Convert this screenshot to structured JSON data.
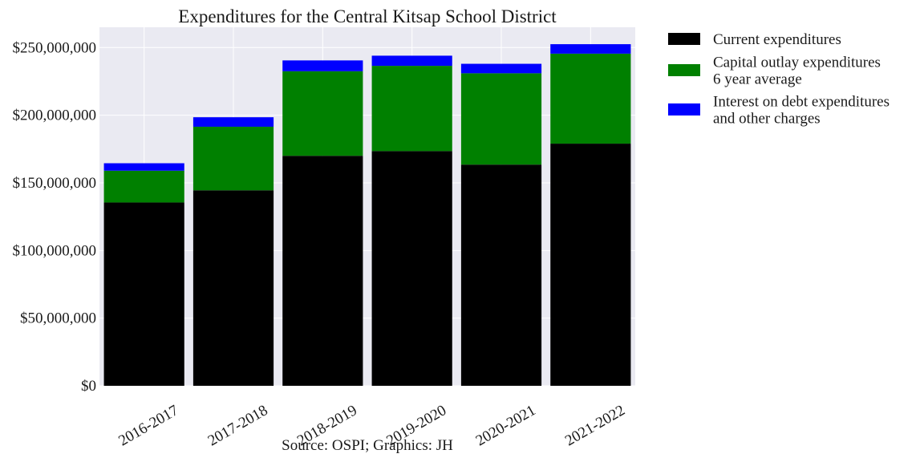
{
  "chart_data": {
    "type": "bar",
    "stacked": true,
    "title": "Expenditures for the Central Kitsap School District",
    "caption": "Source: OSPI; Graphics: JH",
    "categories": [
      "2016-2017",
      "2017-2018",
      "2018-2019",
      "2019-2020",
      "2020-2021",
      "2021-2022"
    ],
    "series": [
      {
        "name": "Current expenditures",
        "color": "#000000",
        "values": [
          135500000,
          144500000,
          170000000,
          173500000,
          163500000,
          179000000
        ]
      },
      {
        "name": "Capital outlay expenditures\n6 year average",
        "color": "#008000",
        "values": [
          23500000,
          47000000,
          62500000,
          63000000,
          67500000,
          66500000
        ]
      },
      {
        "name": "Interest on debt expenditures\nand other charges",
        "color": "#0000ff",
        "values": [
          5500000,
          7000000,
          8000000,
          7500000,
          7000000,
          7000000
        ]
      }
    ],
    "yticks": [
      "$0",
      "$50,000,000",
      "$100,000,000",
      "$150,000,000",
      "$200,000,000",
      "$250,000,000"
    ],
    "ylim": [
      0,
      265000000
    ],
    "grid": true,
    "plot_background": "#eaeaf2",
    "legend_position": "outside-right-top",
    "xtick_rotation": 30
  }
}
